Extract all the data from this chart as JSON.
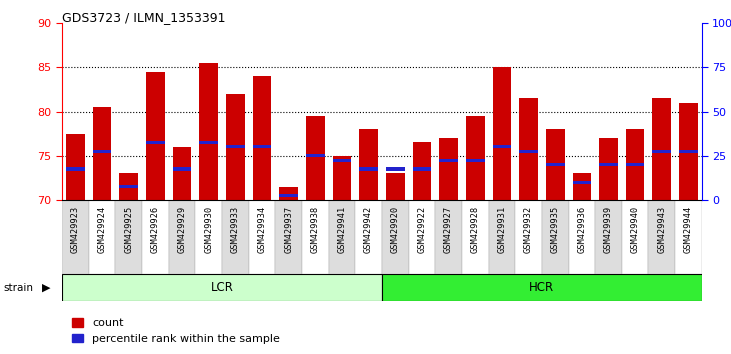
{
  "title": "GDS3723 / ILMN_1353391",
  "samples": [
    "GSM429923",
    "GSM429924",
    "GSM429925",
    "GSM429926",
    "GSM429929",
    "GSM429930",
    "GSM429933",
    "GSM429934",
    "GSM429937",
    "GSM429938",
    "GSM429941",
    "GSM429942",
    "GSM429920",
    "GSM429922",
    "GSM429927",
    "GSM429928",
    "GSM429931",
    "GSM429932",
    "GSM429935",
    "GSM429936",
    "GSM429939",
    "GSM429940",
    "GSM429943",
    "GSM429944"
  ],
  "counts": [
    77.5,
    80.5,
    73.0,
    84.5,
    76.0,
    85.5,
    82.0,
    84.0,
    71.5,
    79.5,
    75.0,
    78.0,
    73.0,
    76.5,
    77.0,
    79.5,
    85.0,
    81.5,
    78.0,
    73.0,
    77.0,
    78.0,
    81.5,
    81.0
  ],
  "percentile_ranks": [
    73.5,
    75.5,
    71.5,
    76.5,
    73.5,
    76.5,
    76.0,
    76.0,
    70.5,
    75.0,
    74.5,
    73.5,
    73.5,
    73.5,
    74.5,
    74.5,
    76.0,
    75.5,
    74.0,
    72.0,
    74.0,
    74.0,
    75.5,
    75.5
  ],
  "lcr_count": 12,
  "hcr_count": 12,
  "ylim": [
    70,
    90
  ],
  "yticks_left": [
    70,
    75,
    80,
    85,
    90
  ],
  "yticks_right_values": [
    0,
    25,
    50,
    75,
    100
  ],
  "yticks_right_labels": [
    "0",
    "25",
    "50",
    "75",
    "100%"
  ],
  "bar_color": "#cc0000",
  "blue_color": "#2222cc",
  "lcr_color": "#ccffcc",
  "hcr_color": "#33ee33",
  "tick_bg_odd": "#dddddd",
  "tick_bg_even": "#ffffff",
  "legend_count": "count",
  "legend_pct": "percentile rank within the sample",
  "strain_label": "strain",
  "lcr_label": "LCR",
  "hcr_label": "HCR",
  "blue_bar_height": 0.35
}
